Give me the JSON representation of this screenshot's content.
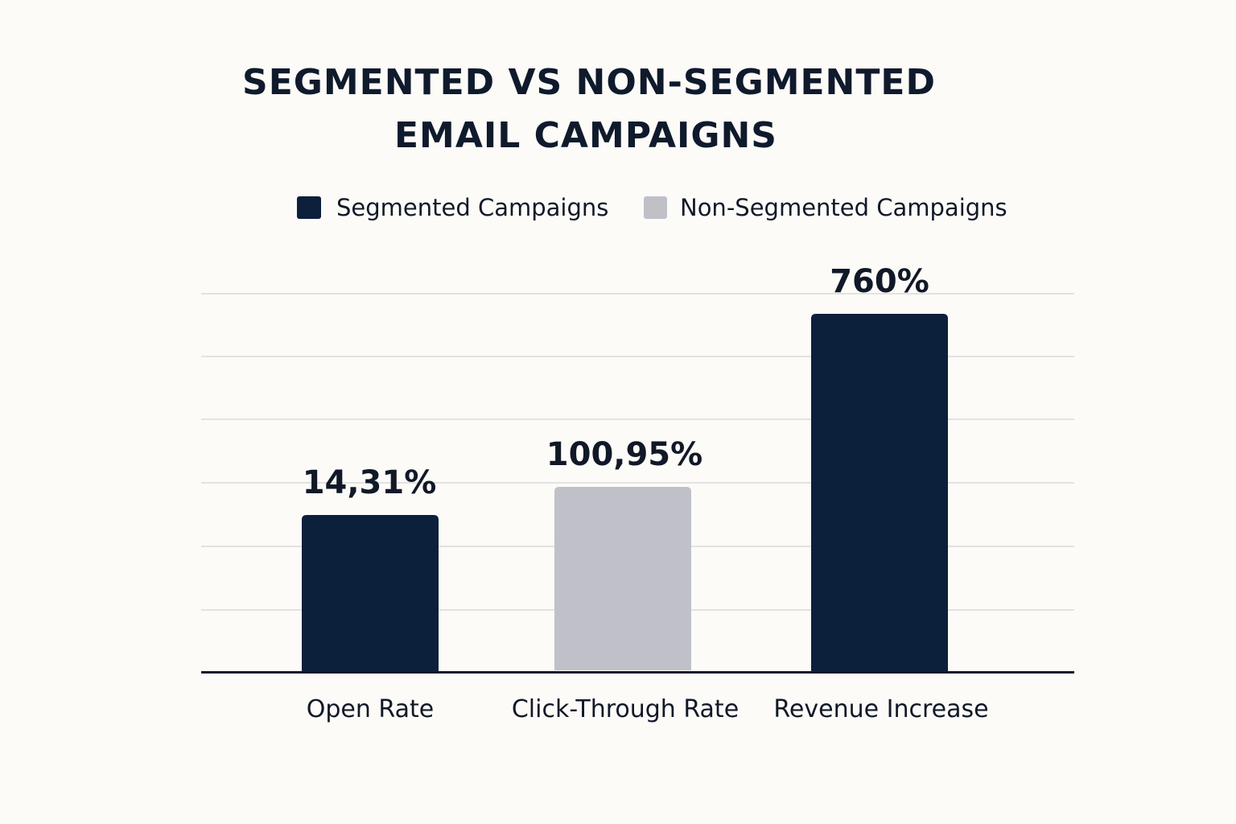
{
  "chart_data": {
    "type": "bar",
    "title": "SEGMENTED VS NON-SEGMENTED EMAIL CAMPAIGNS",
    "title_lines": [
      "SEGMENTED VS NON-SEGMENTED",
      "EMAIL CAMPAIGNS"
    ],
    "categories": [
      "Open Rate",
      "Click-Through Rate",
      "Revenue Increase"
    ],
    "values": [
      14.31,
      100.95,
      760
    ],
    "unit": "%",
    "data_labels": [
      "14,31%",
      "100,95%",
      "760%"
    ],
    "bar_series": [
      "Segmented Campaigns",
      "Non-Segmented Campaigns",
      "Segmented Campaigns"
    ],
    "legend": [
      {
        "name": "Segmented Campaigns",
        "color": "#0c1f3b"
      },
      {
        "name": "Non-Segmented Campaigns",
        "color": "#c0c1c8"
      }
    ],
    "legend_position": "top",
    "xlabel": "",
    "ylabel": "",
    "y_tick_labels_shown": false,
    "grid": true,
    "colors": {
      "background": "#fcfbf8",
      "segmented": "#0c1f3b",
      "non_segmented": "#c0c1c8",
      "grid": "#e2e2e2",
      "axis": "#0f1a2c"
    }
  }
}
